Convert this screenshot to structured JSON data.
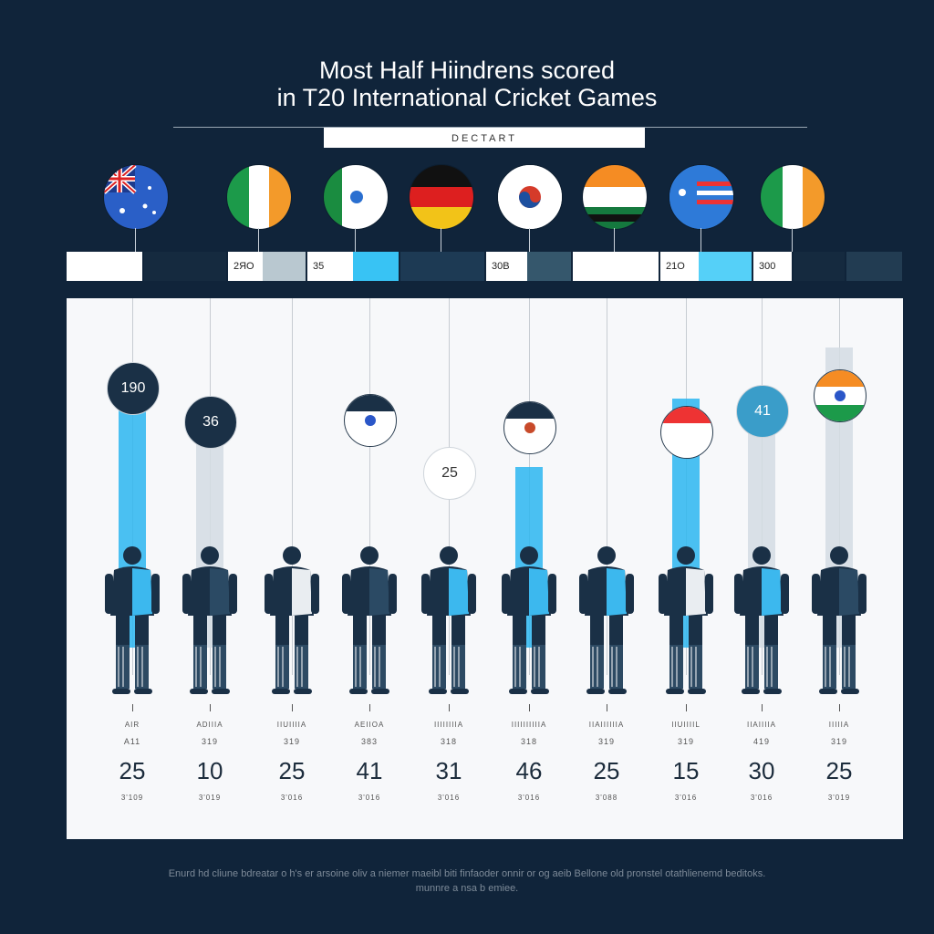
{
  "title_line1": "Most Half Hiindrens scored",
  "title_line2": "in T20 International Cricket Games",
  "subtitle_box": "DECTART",
  "strip_labels": [
    "2ЯО",
    "35",
    "30B",
    "21O",
    "300"
  ],
  "colors": {
    "background": "#10243a",
    "accent": "#2bb6f0",
    "light": "#d3dce3",
    "dark": "#1a3046"
  },
  "chart_data": {
    "type": "bar",
    "categories": [
      "AIR",
      "ADIIIA",
      "IIUIIIIA",
      "AEIIOA",
      "IIIIIIIIA",
      "IIIIIIIIIIA",
      "IIAIIIIIIA",
      "IIUIIIIL",
      "IIAIIIIA",
      "IIIIIA"
    ],
    "category_sub": [
      "A11",
      "319",
      "319",
      "383",
      "318",
      "318",
      "319",
      "319",
      "419",
      "319"
    ],
    "values": [
      25,
      10,
      25,
      41,
      31,
      46,
      25,
      15,
      30,
      25
    ],
    "value_sub": [
      "3'109",
      "3'019",
      "3'016",
      "3'016",
      "3'016",
      "3'016",
      "3'088",
      "3'016",
      "3'016",
      "3'019"
    ],
    "badges": [
      "190",
      "36",
      "",
      "",
      "25",
      "",
      "",
      "",
      "41",
      ""
    ],
    "bar_colors": [
      "#2bb6f0",
      "#d3dce3",
      "#d3dce3",
      "#d3dce3",
      "#d3dce3",
      "#2bb6f0",
      "#d3dce3",
      "#2bb6f0",
      "#d3dce3",
      "#d3dce3"
    ],
    "bar_tops_value": [
      46,
      40,
      0,
      0,
      0,
      32,
      0,
      44,
      42,
      53
    ]
  },
  "footer_line1": "Enurd hd cliune bdreatar o h's er arsoine oliv a niemer maeibl biti finfaoder onnir or og aeib Bellone old pronstel otathlienemd beditoks.",
  "footer_line2": "munnre a nsa b emiee."
}
